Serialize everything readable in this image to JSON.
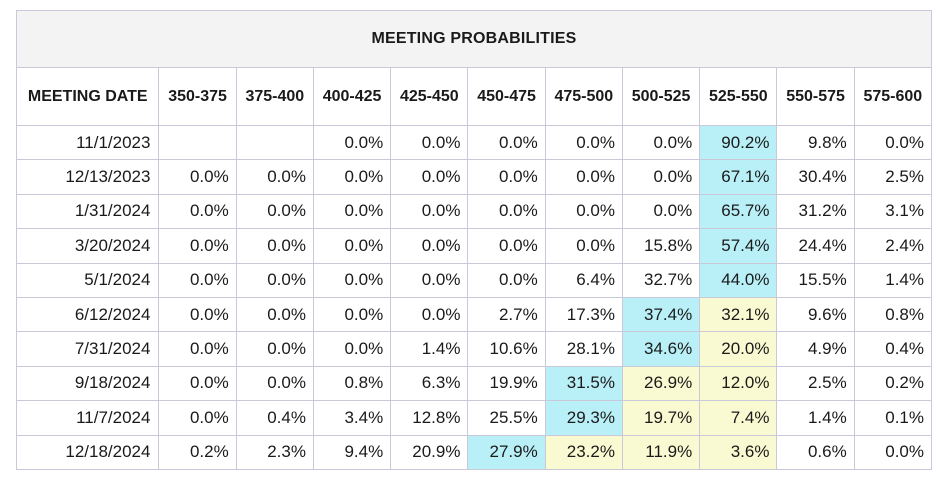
{
  "chart_data": {
    "type": "table",
    "title": "MEETING PROBABILITIES",
    "columns": [
      "MEETING DATE",
      "350-375",
      "375-400",
      "400-425",
      "425-450",
      "450-475",
      "475-500",
      "500-525",
      "525-550",
      "550-575",
      "575-600"
    ],
    "rows": [
      {
        "date": "11/1/2023",
        "values": [
          "",
          "",
          "0.0%",
          "0.0%",
          "0.0%",
          "0.0%",
          "0.0%",
          "90.2%",
          "9.8%",
          "0.0%"
        ],
        "highlight": [
          "",
          "",
          "",
          "",
          "",
          "",
          "",
          "blue",
          "",
          ""
        ]
      },
      {
        "date": "12/13/2023",
        "values": [
          "0.0%",
          "0.0%",
          "0.0%",
          "0.0%",
          "0.0%",
          "0.0%",
          "0.0%",
          "67.1%",
          "30.4%",
          "2.5%"
        ],
        "highlight": [
          "",
          "",
          "",
          "",
          "",
          "",
          "",
          "blue",
          "",
          ""
        ]
      },
      {
        "date": "1/31/2024",
        "values": [
          "0.0%",
          "0.0%",
          "0.0%",
          "0.0%",
          "0.0%",
          "0.0%",
          "0.0%",
          "65.7%",
          "31.2%",
          "3.1%"
        ],
        "highlight": [
          "",
          "",
          "",
          "",
          "",
          "",
          "",
          "blue",
          "",
          ""
        ]
      },
      {
        "date": "3/20/2024",
        "values": [
          "0.0%",
          "0.0%",
          "0.0%",
          "0.0%",
          "0.0%",
          "0.0%",
          "15.8%",
          "57.4%",
          "24.4%",
          "2.4%"
        ],
        "highlight": [
          "",
          "",
          "",
          "",
          "",
          "",
          "",
          "blue",
          "",
          ""
        ]
      },
      {
        "date": "5/1/2024",
        "values": [
          "0.0%",
          "0.0%",
          "0.0%",
          "0.0%",
          "0.0%",
          "6.4%",
          "32.7%",
          "44.0%",
          "15.5%",
          "1.4%"
        ],
        "highlight": [
          "",
          "",
          "",
          "",
          "",
          "",
          "",
          "blue",
          "",
          ""
        ]
      },
      {
        "date": "6/12/2024",
        "values": [
          "0.0%",
          "0.0%",
          "0.0%",
          "0.0%",
          "2.7%",
          "17.3%",
          "37.4%",
          "32.1%",
          "9.6%",
          "0.8%"
        ],
        "highlight": [
          "",
          "",
          "",
          "",
          "",
          "",
          "blue",
          "yellow",
          "",
          ""
        ]
      },
      {
        "date": "7/31/2024",
        "values": [
          "0.0%",
          "0.0%",
          "0.0%",
          "1.4%",
          "10.6%",
          "28.1%",
          "34.6%",
          "20.0%",
          "4.9%",
          "0.4%"
        ],
        "highlight": [
          "",
          "",
          "",
          "",
          "",
          "",
          "blue",
          "yellow",
          "",
          ""
        ]
      },
      {
        "date": "9/18/2024",
        "values": [
          "0.0%",
          "0.0%",
          "0.8%",
          "6.3%",
          "19.9%",
          "31.5%",
          "26.9%",
          "12.0%",
          "2.5%",
          "0.2%"
        ],
        "highlight": [
          "",
          "",
          "",
          "",
          "",
          "blue",
          "yellow",
          "yellow",
          "",
          ""
        ]
      },
      {
        "date": "11/7/2024",
        "values": [
          "0.0%",
          "0.4%",
          "3.4%",
          "12.8%",
          "25.5%",
          "29.3%",
          "19.7%",
          "7.4%",
          "1.4%",
          "0.1%"
        ],
        "highlight": [
          "",
          "",
          "",
          "",
          "",
          "blue",
          "yellow",
          "yellow",
          "",
          ""
        ]
      },
      {
        "date": "12/18/2024",
        "values": [
          "0.2%",
          "2.3%",
          "9.4%",
          "20.9%",
          "27.9%",
          "23.2%",
          "11.9%",
          "3.6%",
          "0.6%",
          "0.0%"
        ],
        "highlight": [
          "",
          "",
          "",
          "",
          "blue",
          "yellow",
          "yellow",
          "yellow",
          "",
          ""
        ]
      }
    ],
    "colors": {
      "highlight_blue": "#b9f0f7",
      "highlight_yellow": "#fafad2",
      "title_bg": "#f3f3f3",
      "border": "#c9c9d9"
    }
  }
}
